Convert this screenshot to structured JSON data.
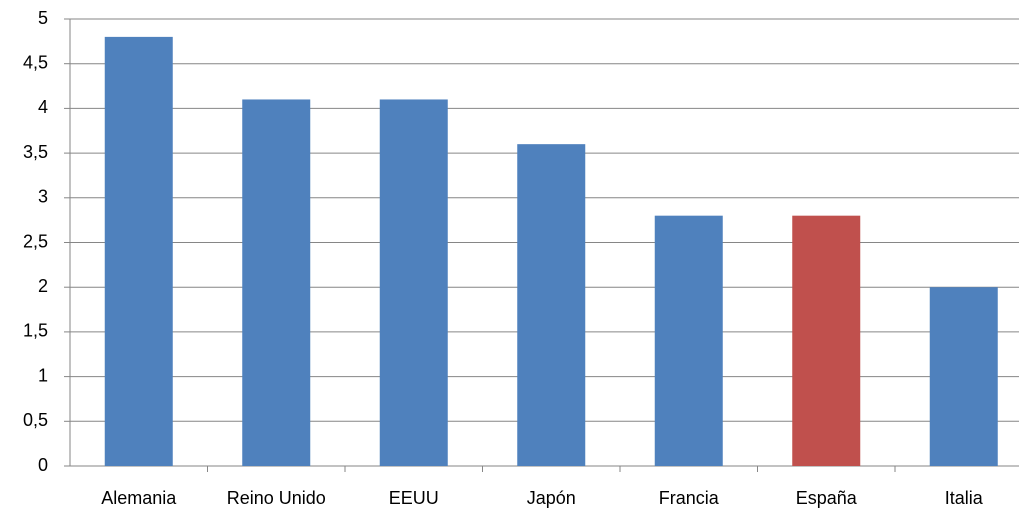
{
  "chart_data": {
    "type": "bar",
    "categories": [
      "Alemania",
      "Reino Unido",
      "EEUU",
      "Japón",
      "Francia",
      "España",
      "Italia"
    ],
    "values": [
      4.8,
      4.1,
      4.1,
      3.6,
      2.8,
      2.8,
      2
    ],
    "colors": [
      "#4f81bd",
      "#4f81bd",
      "#4f81bd",
      "#4f81bd",
      "#4f81bd",
      "#c0504d",
      "#4f81bd"
    ],
    "ylim": [
      0,
      5
    ],
    "yticks": [
      0,
      {
        "value": 0.5,
        "label": "0,5"
      },
      1,
      {
        "value": 1.5,
        "label": "1,5"
      },
      2,
      {
        "value": 2.5,
        "label": "2,5"
      },
      3,
      {
        "value": 3.5,
        "label": "3,5"
      },
      4,
      {
        "value": 4.5,
        "label": "4,5"
      },
      5
    ],
    "grid": true
  }
}
